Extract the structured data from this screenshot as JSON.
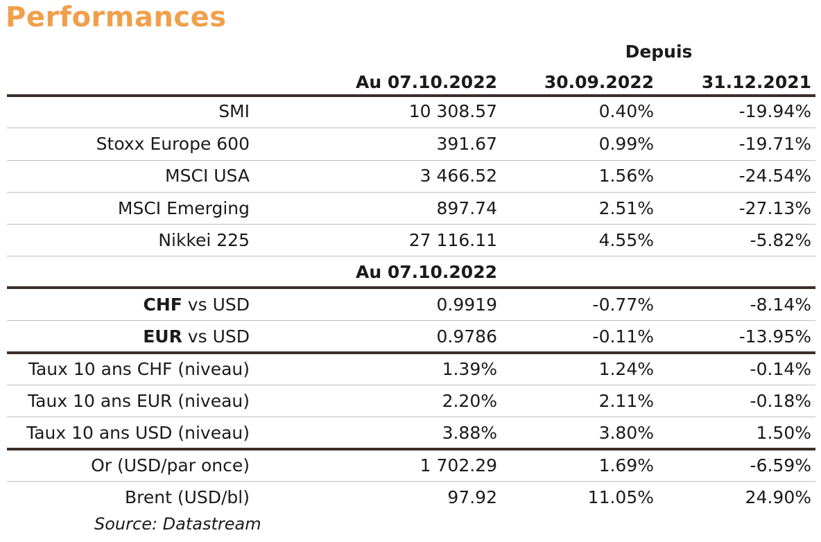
{
  "title": "Performances",
  "depuis_label": "Depuis",
  "headers": {
    "c1": "Au 07.10.2022",
    "c2": "30.09.2022",
    "c3": "31.12.2021"
  },
  "section_header": "Au 07.10.2022",
  "rows": [
    {
      "label": "SMI",
      "v1": "10 308.57",
      "v2": "0.40%",
      "v3": "-19.94%"
    },
    {
      "label": "Stoxx Europe 600",
      "v1": "391.67",
      "v2": "0.99%",
      "v3": "-19.71%"
    },
    {
      "label": "MSCI USA",
      "v1": "3 466.52",
      "v2": "1.56%",
      "v3": "-24.54%"
    },
    {
      "label": "MSCI Emerging",
      "v1": "897.74",
      "v2": "2.51%",
      "v3": "-27.13%"
    },
    {
      "label": "Nikkei 225",
      "v1": "27 116.11",
      "v2": "4.55%",
      "v3": "-5.82%"
    },
    {
      "label_bold": "CHF",
      "label": " vs USD",
      "v1": "0.9919",
      "v2": "-0.77%",
      "v3": "-8.14%"
    },
    {
      "label_bold": "EUR",
      "label": " vs USD",
      "v1": "0.9786",
      "v2": "-0.11%",
      "v3": "-13.95%"
    },
    {
      "label": "Taux 10 ans CHF (niveau)",
      "v1": "1.39%",
      "v2": "1.24%",
      "v3": "-0.14%"
    },
    {
      "label": "Taux 10 ans EUR (niveau)",
      "v1": "2.20%",
      "v2": "2.11%",
      "v3": "-0.18%"
    },
    {
      "label": "Taux 10 ans USD (niveau)",
      "v1": "3.88%",
      "v2": "3.80%",
      "v3": "1.50%"
    },
    {
      "label": "Or (USD/par once)",
      "v1": "1 702.29",
      "v2": "1.69%",
      "v3": "-6.59%"
    },
    {
      "label": "Brent (USD/bl)",
      "v1": "97.92",
      "v2": "11.05%",
      "v3": "24.90%"
    }
  ],
  "source": "Source: Datastream"
}
